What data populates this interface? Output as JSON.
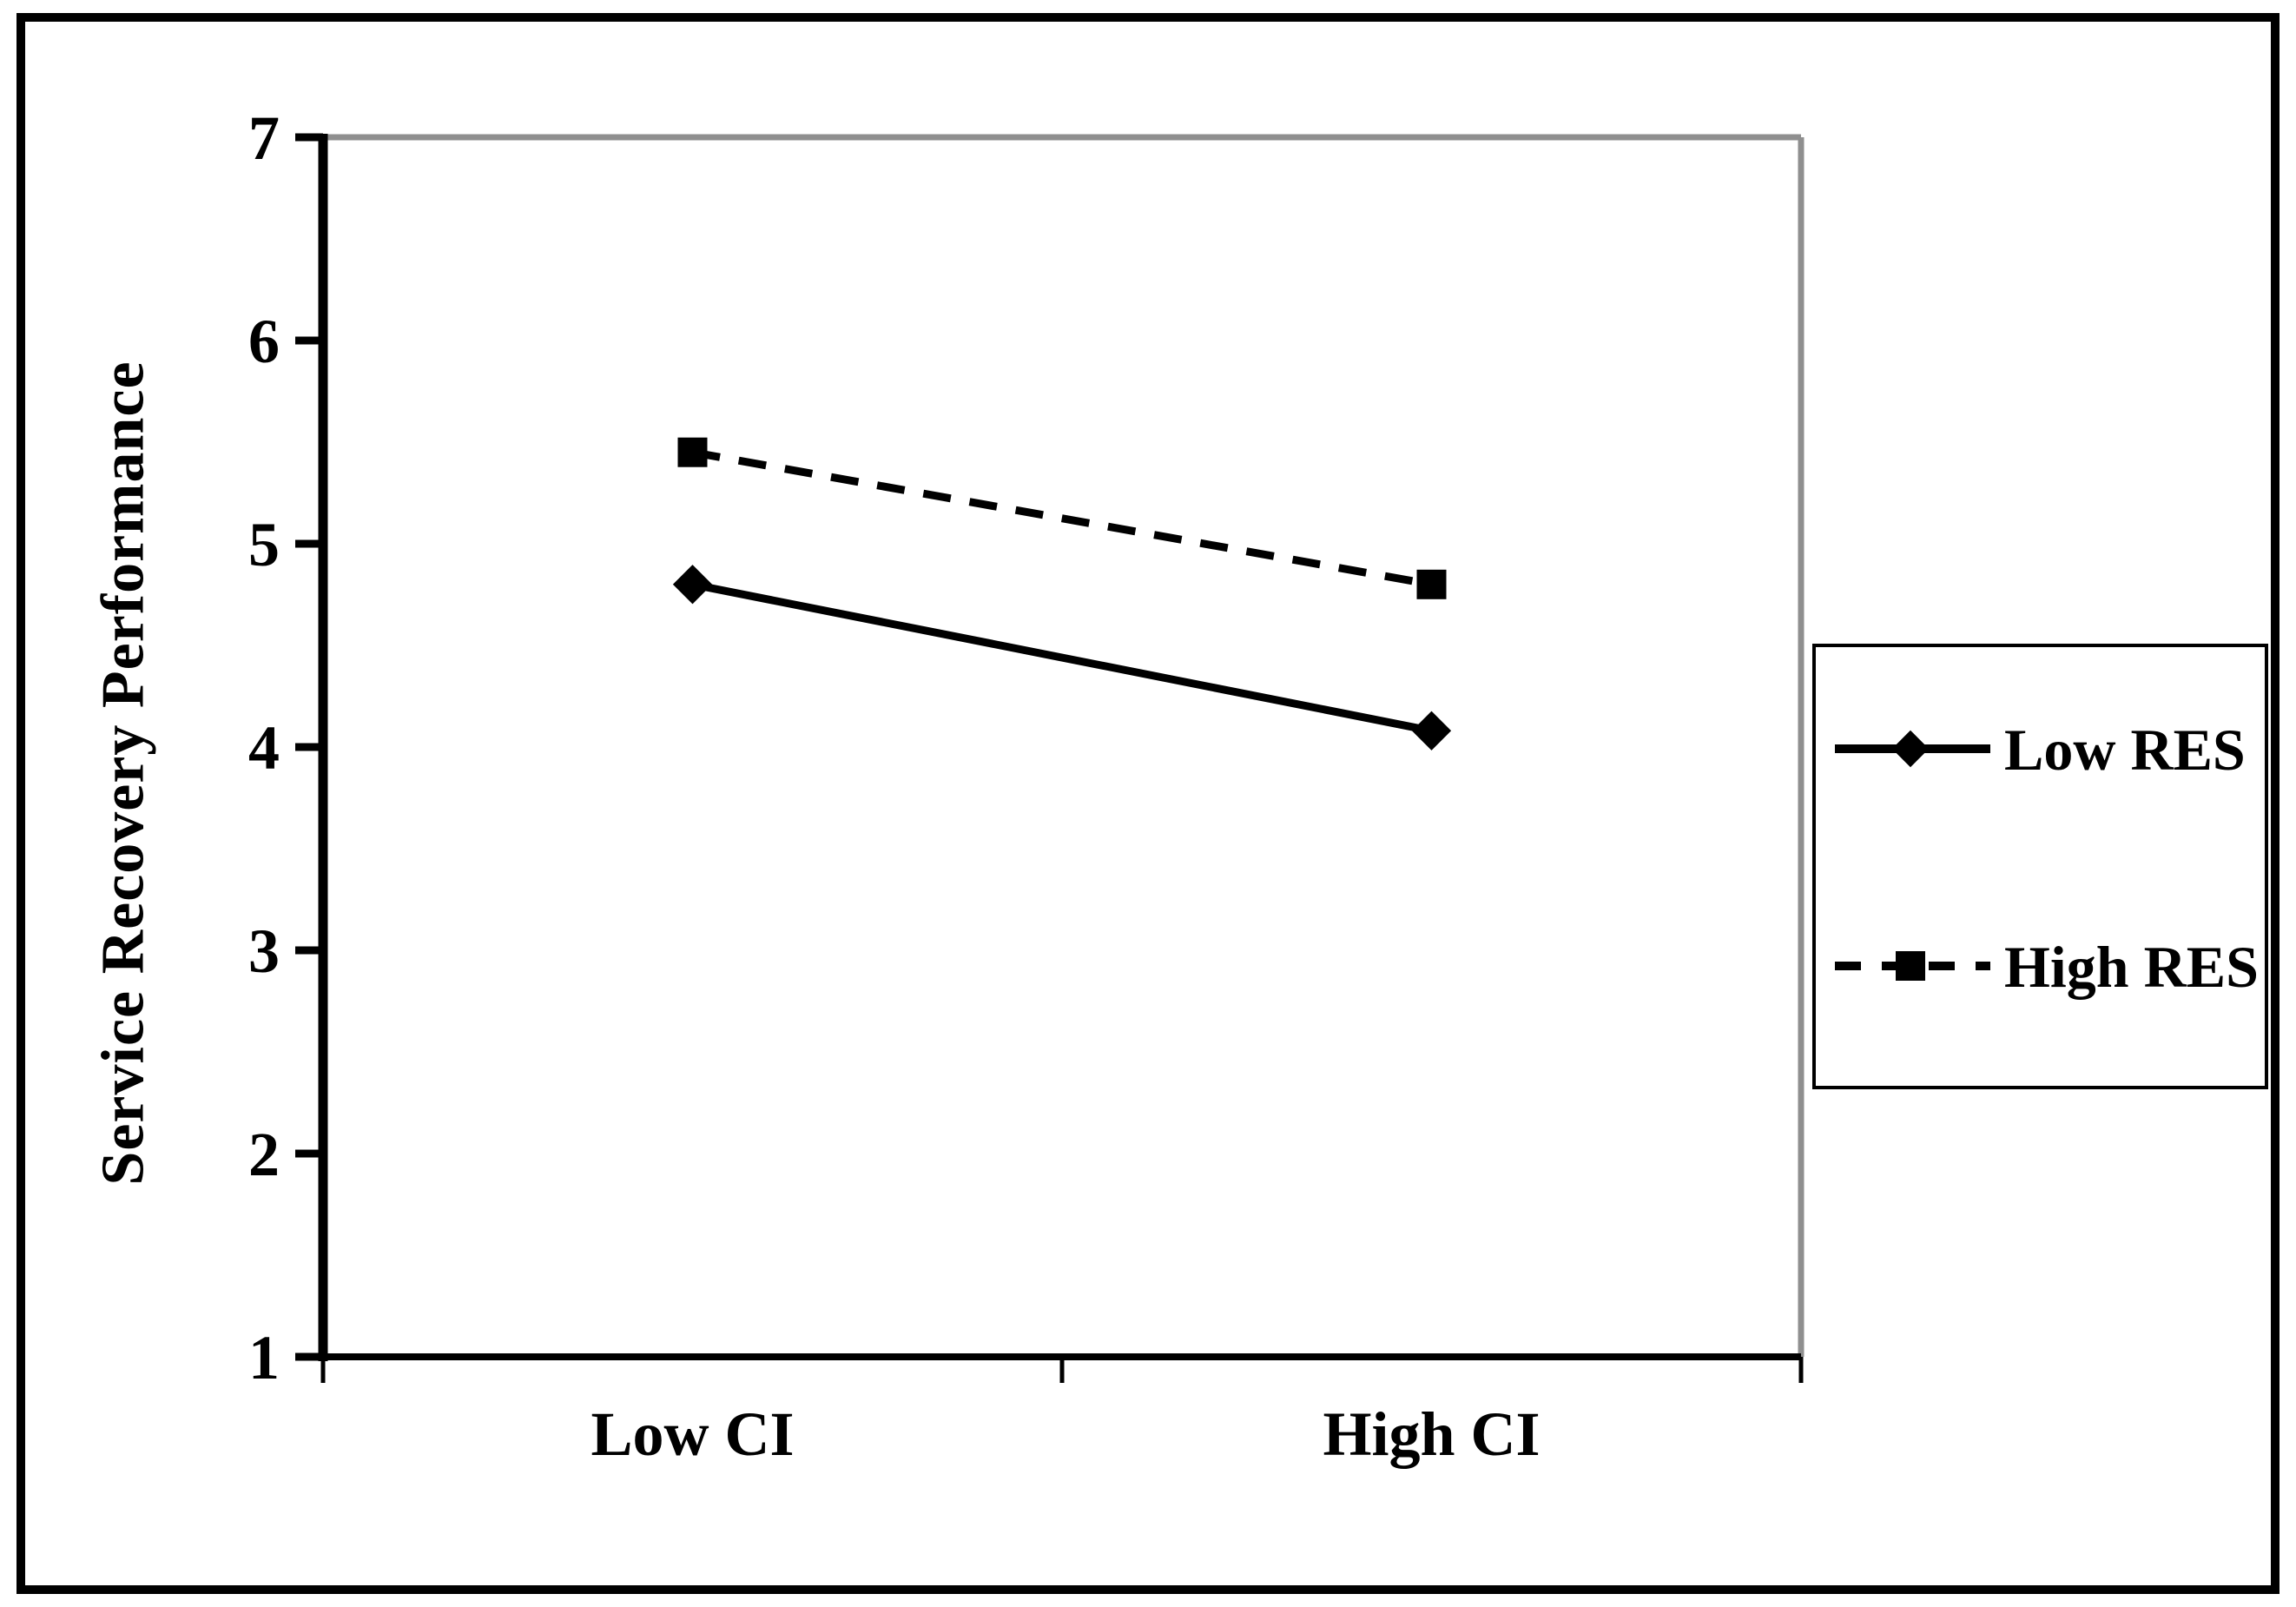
{
  "chart_data": {
    "type": "line",
    "categories": [
      "Low CI",
      "High CI"
    ],
    "series": [
      {
        "name": "Low RES",
        "values": [
          4.8,
          4.08
        ],
        "line_style": "solid",
        "marker": "diamond",
        "color": "#000000"
      },
      {
        "name": "High RES",
        "values": [
          5.45,
          4.8
        ],
        "line_style": "dashed",
        "marker": "square",
        "color": "#000000"
      }
    ],
    "title": "",
    "xlabel": "",
    "ylabel": "Service Recovery Performance",
    "ylim": [
      1,
      7
    ],
    "yticks": [
      1,
      2,
      3,
      4,
      5,
      6,
      7
    ],
    "grid": false,
    "legend_position": "right"
  },
  "colors": {
    "series_line": "#000000",
    "text": "#000000",
    "plot_border_gray": "#8f8f8f",
    "axis_black": "#000000",
    "figure_border": "#000000",
    "background": "#ffffff"
  }
}
